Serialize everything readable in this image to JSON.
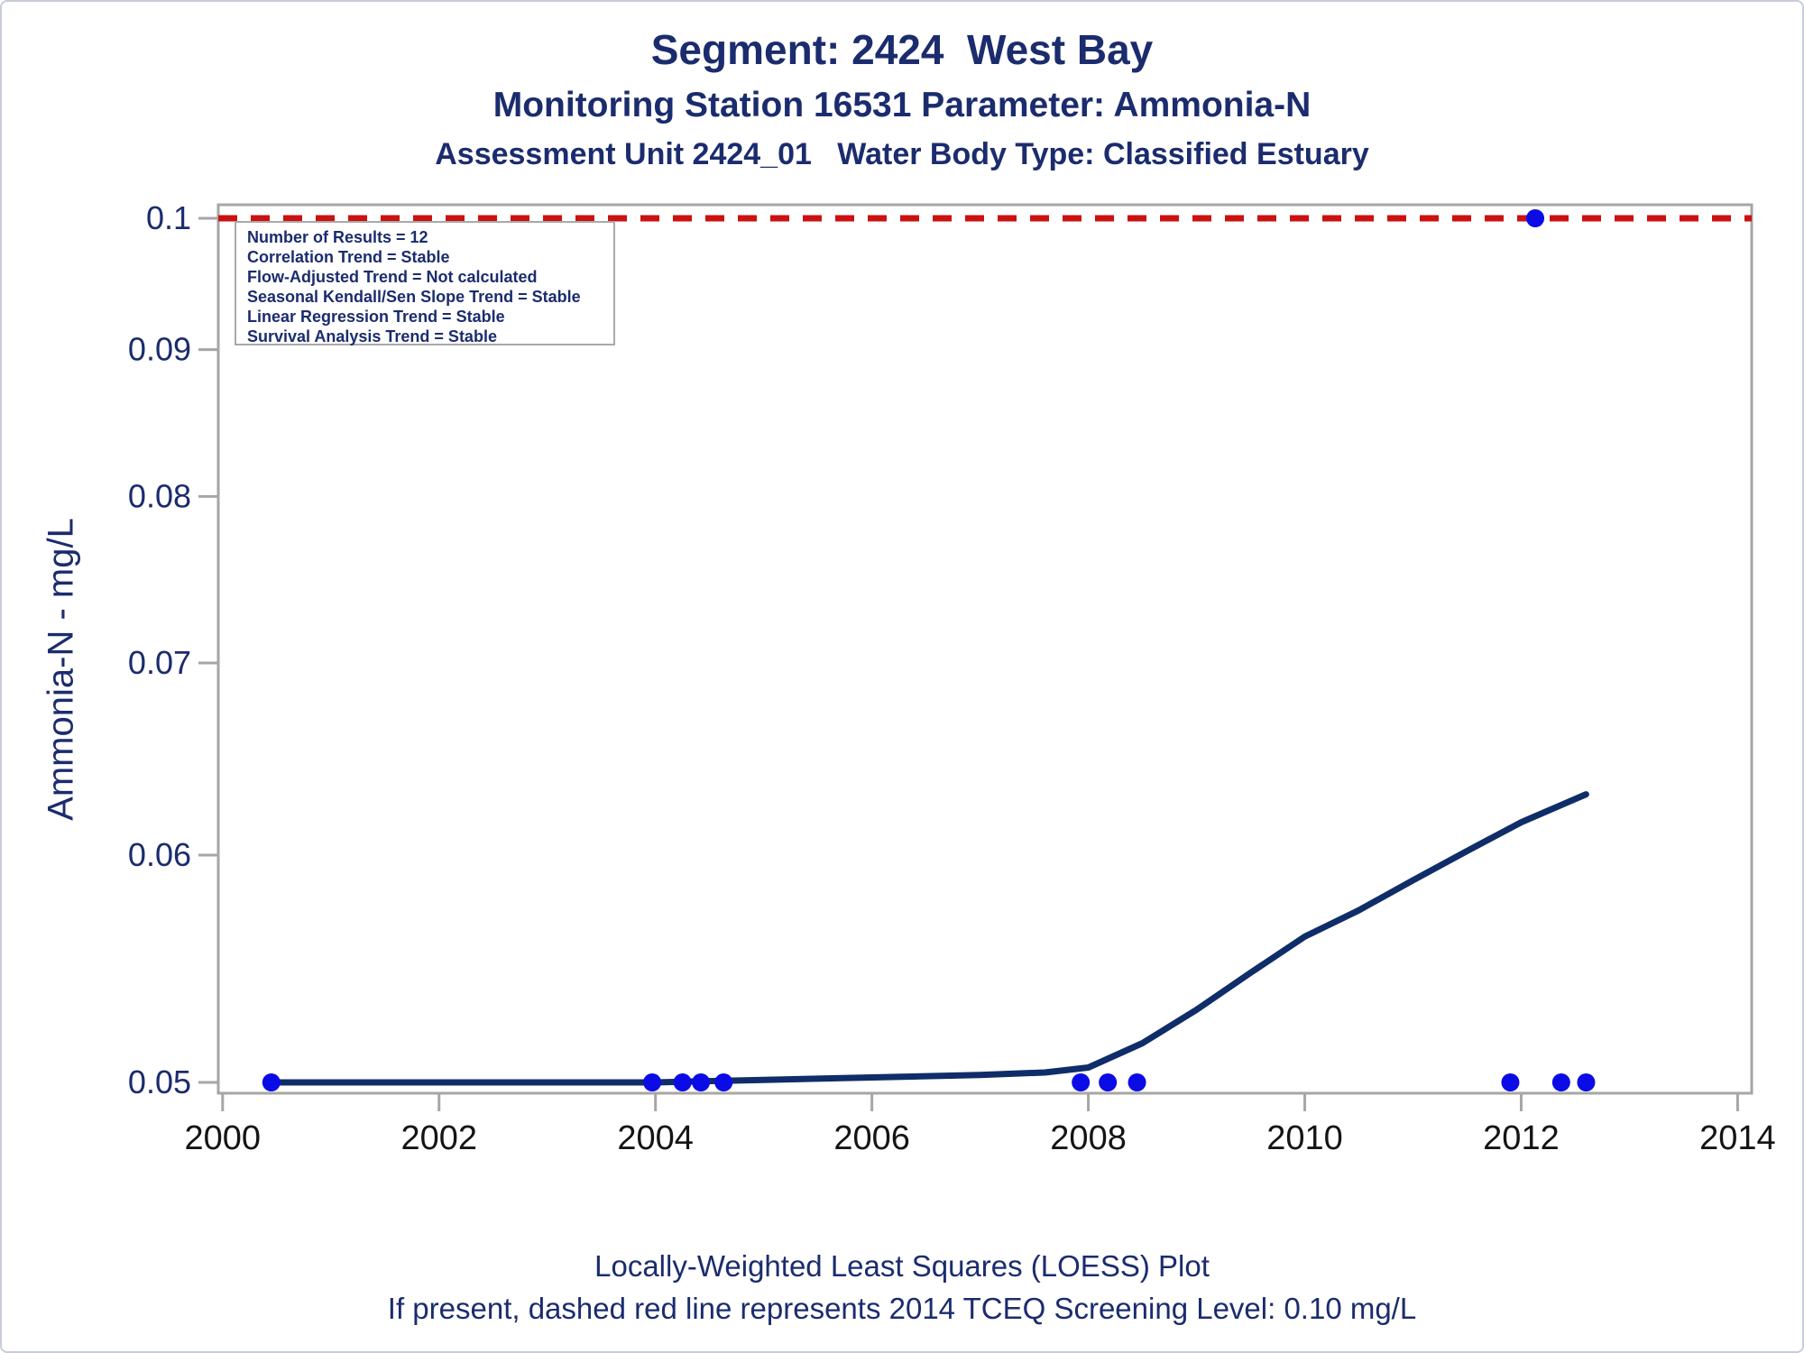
{
  "titles": {
    "line1": "Segment: 2424  West Bay",
    "line2": "Monitoring Station 16531 Parameter: Ammonia-N",
    "line3": "Assessment Unit 2424_01   Water Body Type: Classified Estuary"
  },
  "annotation_box": {
    "lines": [
      "Number of Results = 12",
      "Correlation Trend = Stable",
      "Flow-Adjusted Trend = Not calculated",
      "Seasonal Kendall/Sen Slope Trend = Stable",
      "Linear Regression Trend = Stable",
      "Survival Analysis Trend = Stable"
    ]
  },
  "footnotes": {
    "line1": "Locally-Weighted Least Squares (LOESS) Plot",
    "line2": "If present, dashed red line represents 2014 TCEQ Screening Level: 0.10 mg/L"
  },
  "chart_data": {
    "type": "scatter",
    "title": "Segment: 2424 West Bay — Monitoring Station 16531 — Ammonia-N",
    "xlabel": "",
    "ylabel": "Ammonia-N - mg/L",
    "y_scale": "log",
    "xlim": [
      1999.96,
      2014.13
    ],
    "ylim": [
      0.05,
      0.1
    ],
    "x_ticks": [
      2000,
      2002,
      2004,
      2006,
      2008,
      2010,
      2012,
      2014
    ],
    "y_ticks": [
      0.1,
      0.09,
      0.08,
      0.07,
      0.06,
      0.05
    ],
    "y_tick_labels": [
      "0.1",
      "0.09",
      "0.08",
      "0.07",
      "0.06",
      "0.05"
    ],
    "screening_level": 0.1,
    "screening_level_label": "2014 TCEQ Screening Level: 0.10 mg/L",
    "points": [
      [
        2000.45,
        0.05
      ],
      [
        2003.97,
        0.05
      ],
      [
        2004.25,
        0.05
      ],
      [
        2004.42,
        0.05
      ],
      [
        2004.63,
        0.05
      ],
      [
        2007.93,
        0.05
      ],
      [
        2008.18,
        0.05
      ],
      [
        2008.45,
        0.05
      ],
      [
        2011.9,
        0.05
      ],
      [
        2012.13,
        0.1
      ],
      [
        2012.37,
        0.05
      ],
      [
        2012.6,
        0.05
      ]
    ],
    "loess": [
      [
        2000.45,
        0.05
      ],
      [
        2001.0,
        0.05
      ],
      [
        2002.0,
        0.05
      ],
      [
        2003.0,
        0.05
      ],
      [
        2004.0,
        0.05
      ],
      [
        2005.0,
        0.0501
      ],
      [
        2006.0,
        0.0502
      ],
      [
        2007.0,
        0.0503
      ],
      [
        2007.6,
        0.0504
      ],
      [
        2008.0,
        0.0506
      ],
      [
        2008.5,
        0.0516
      ],
      [
        2009.0,
        0.053
      ],
      [
        2009.5,
        0.0546
      ],
      [
        2010.0,
        0.0562
      ],
      [
        2010.5,
        0.0574
      ],
      [
        2011.0,
        0.0588
      ],
      [
        2011.5,
        0.0602
      ],
      [
        2012.0,
        0.0616
      ],
      [
        2012.6,
        0.063
      ]
    ],
    "colors": {
      "title_text": "#1B2C6E",
      "loess_line": "#0F2D69",
      "data_point": "#0B0BE6",
      "screening_line": "#CC1111",
      "axis": "#A6A6A6",
      "x_tick_text": "#141414",
      "y_tick_text": "#1B2C6E"
    }
  }
}
